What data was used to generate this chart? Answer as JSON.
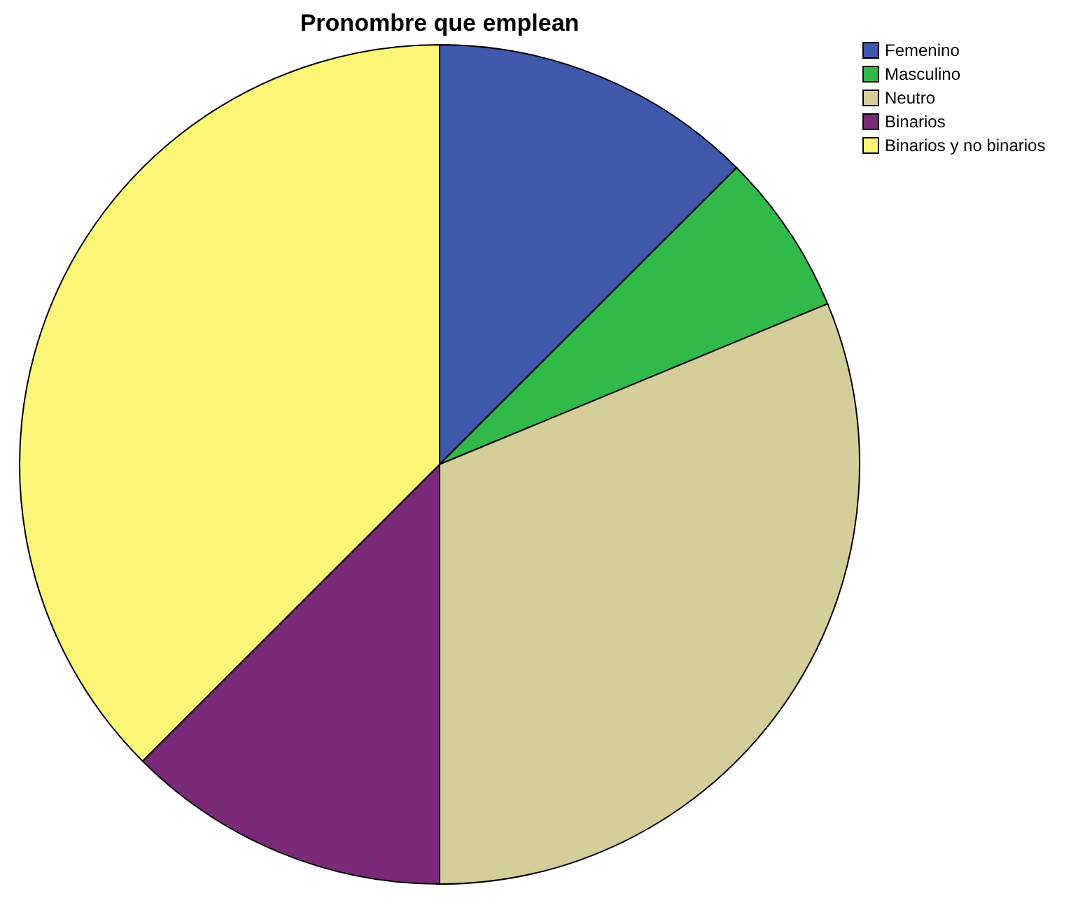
{
  "chart_data": {
    "type": "pie",
    "title": "Pronombre que emplean",
    "categories": [
      "Femenino",
      "Masculino",
      "Neutro",
      "Binarios",
      "Binarios y no binarios"
    ],
    "values": [
      12.5,
      6.25,
      31.25,
      12.5,
      37.5
    ],
    "colors": [
      "#3f58aa",
      "#31b94a",
      "#d4ce9a",
      "#7b2a78",
      "#fbf675"
    ],
    "legend": "top right"
  }
}
